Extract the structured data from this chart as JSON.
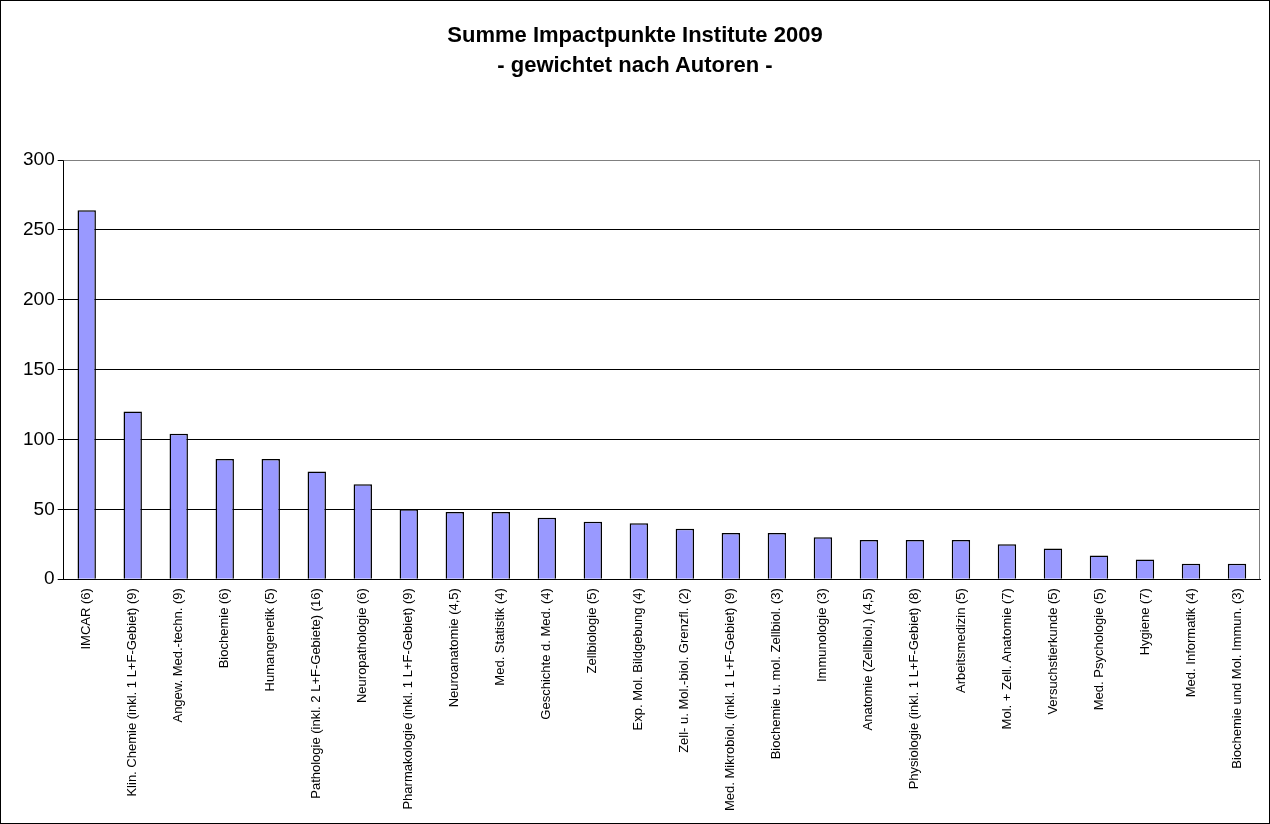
{
  "chart_data": {
    "type": "bar",
    "title": "Summe Impactpunkte Institute 2009",
    "subtitle": "- gewichtet nach Autoren -",
    "categories": [
      "IMCAR (6)",
      "Klin. Chemie (inkl. 1 L+F-Gebiet) (9)",
      "Angew. Med.-techn. (9)",
      "Biochemie (6)",
      "Humangenetik (5)",
      "Pathologie (inkl. 2 L+F-Gebiete) (16)",
      "Neuropathologie (6)",
      "Pharmakologie (inkl. 1 L+F-Gebiet) (9)",
      "Neuroanatomie (4,5)",
      "Med. Statistik (4)",
      "Geschichte d. Med. (4)",
      "Zellbiologie (5)",
      "Exp. Mol. Bildgebung (4)",
      "Zell- u. Mol.-biol. Grenzfl. (2)",
      "Med. Mikrobiol. (inkl. 1 L+F-Gebiet) (9)",
      "Biochemie u. mol. Zellbiol. (3)",
      "Immunologie (3)",
      "Anatomie (Zellbiol.) (4,5)",
      "Physiologie (inkl. 1 L+F-Gebiet) (8)",
      "Arbeitsmedizin (5)",
      "Mol. + Zell. Anatomie (7)",
      "Versuchstierkunde (5)",
      "Med. Psychologie (5)",
      "Hygiene (7)",
      "Med. Informatik (4)",
      "Biochemie und Mol. Immun. (3)"
    ],
    "values": [
      264,
      120,
      104,
      86,
      86,
      77,
      68,
      50,
      48,
      48,
      44,
      41,
      40,
      36,
      33,
      33,
      30,
      28,
      28,
      28,
      25,
      22,
      17,
      14,
      11,
      11
    ],
    "color": "#9999ff",
    "ylim": [
      0,
      300
    ],
    "yticks": [
      0,
      50,
      100,
      150,
      200,
      250,
      300
    ],
    "grid": "y",
    "legend": false
  }
}
